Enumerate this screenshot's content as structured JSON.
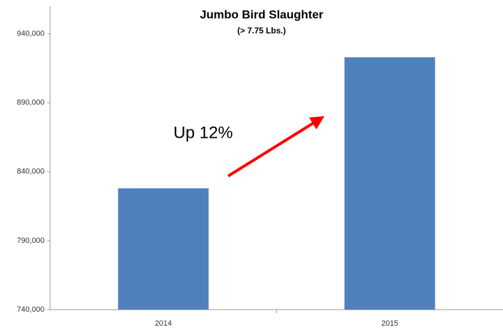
{
  "chart_data": {
    "type": "bar",
    "title": "Jumbo Bird Slaughter",
    "subtitle": "(> 7.75 Lbs.)",
    "annotation": "Up 12%",
    "categories": [
      "2014",
      "2015"
    ],
    "values": [
      828000,
      923000
    ],
    "color": "#4f81bd",
    "ylim": [
      740000,
      960000
    ],
    "yticks": [
      {
        "value": 740000,
        "label": "740,000"
      },
      {
        "value": 790000,
        "label": "790,000"
      },
      {
        "value": 840000,
        "label": "840,000"
      },
      {
        "value": 890000,
        "label": "890,000"
      },
      {
        "value": 940000,
        "label": "940,000"
      }
    ],
    "grid": false
  }
}
